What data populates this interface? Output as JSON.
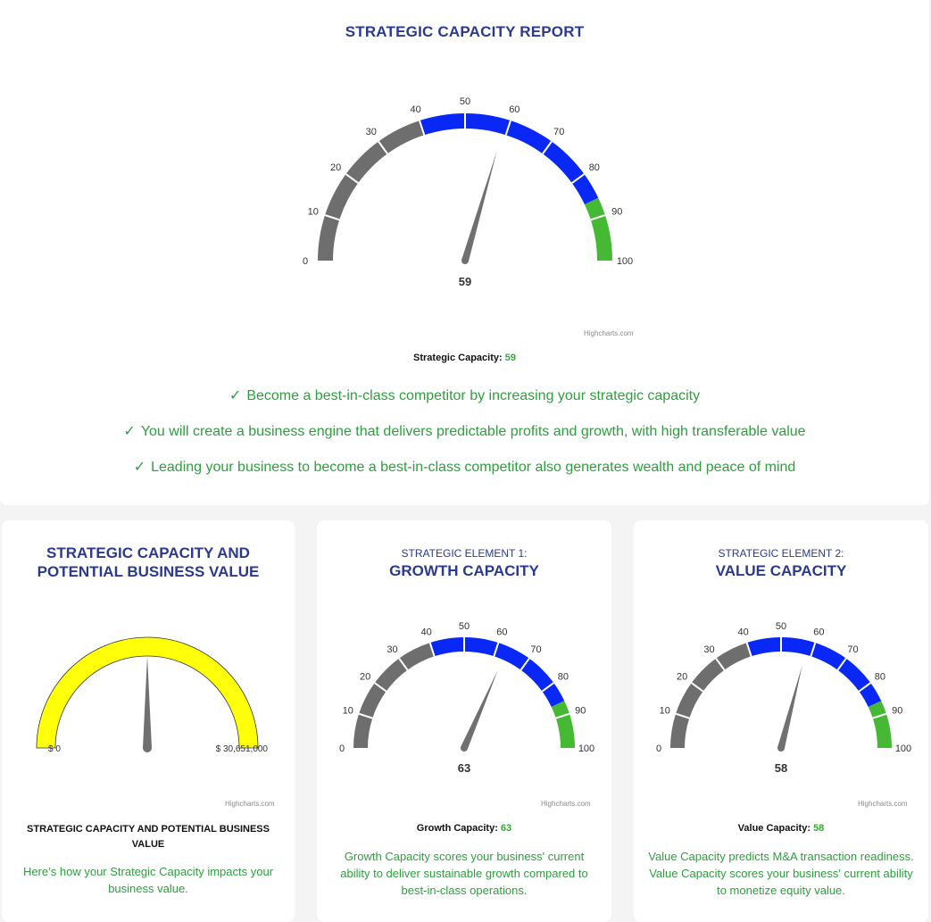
{
  "report": {
    "title": "STRATEGIC CAPACITY REPORT",
    "credit": "Highcharts.com",
    "caption_label": "Strategic Capacity:",
    "caption_value": "59",
    "bullets": [
      "Become a best-in-class competitor by increasing your strategic capacity",
      "You will create a business engine that delivers predictable profits and growth, with high transferable value",
      "Leading your business to become a best-in-class competitor also generates wealth and peace of mind"
    ],
    "check_icon": "✓"
  },
  "cards": [
    {
      "title_line1": "STRATEGIC CAPACITY AND",
      "title_line2": "POTENTIAL BUSINESS VALUE",
      "min_label": "$ 0",
      "max_label": "$ 30,651,000",
      "credit": "Highcharts.com",
      "caption": "STRATEGIC CAPACITY AND POTENTIAL BUSINESS VALUE",
      "description": "Here’s how your Strategic Capacity impacts your business value."
    },
    {
      "subtitle": "STRATEGIC ELEMENT 1:",
      "title": "GROWTH CAPACITY",
      "value_label": "63",
      "credit": "Highcharts.com",
      "caption_label": "Growth Capacity:",
      "caption_value": "63",
      "description": "Growth Capacity scores your business' current ability to deliver sustainable growth compared to best-in-class operations."
    },
    {
      "subtitle": "STRATEGIC ELEMENT 2:",
      "title": "VALUE CAPACITY",
      "value_label": "58",
      "credit": "Highcharts.com",
      "caption_label": "Value Capacity:",
      "caption_value": "58",
      "description": "Value Capacity predicts M&A transaction readiness. Value Capacity scores your business' current ability to monetize equity value."
    }
  ],
  "chart_data": [
    {
      "type": "gauge",
      "title": "STRATEGIC CAPACITY REPORT",
      "min": 0,
      "max": 100,
      "value": 59,
      "ticks": [
        "0",
        "10",
        "20",
        "30",
        "40",
        "50",
        "60",
        "70",
        "80",
        "90",
        "100"
      ],
      "bands": [
        {
          "from": 0,
          "to": 40,
          "color": "#6e6e6e"
        },
        {
          "from": 40,
          "to": 86,
          "color": "#0a28f5"
        },
        {
          "from": 86,
          "to": 100,
          "color": "#45b834"
        }
      ],
      "value_label": "59"
    },
    {
      "type": "gauge",
      "title": "STRATEGIC CAPACITY AND POTENTIAL BUSINESS VALUE",
      "min": 0,
      "max": 30651000,
      "value": 15325500,
      "ticks": [
        "$ 0",
        "$ 30,651,000"
      ],
      "bands": [
        {
          "from": 0,
          "to": 30651000,
          "color": "#ffff0a"
        }
      ]
    },
    {
      "type": "gauge",
      "title": "GROWTH CAPACITY",
      "min": 0,
      "max": 100,
      "value": 63,
      "ticks": [
        "0",
        "10",
        "20",
        "30",
        "40",
        "50",
        "60",
        "70",
        "80",
        "90",
        "100"
      ],
      "bands": [
        {
          "from": 0,
          "to": 40,
          "color": "#6e6e6e"
        },
        {
          "from": 40,
          "to": 86,
          "color": "#0a28f5"
        },
        {
          "from": 86,
          "to": 100,
          "color": "#45b834"
        }
      ],
      "value_label": "63"
    },
    {
      "type": "gauge",
      "title": "VALUE CAPACITY",
      "min": 0,
      "max": 100,
      "value": 58,
      "ticks": [
        "0",
        "10",
        "20",
        "30",
        "40",
        "50",
        "60",
        "70",
        "80",
        "90",
        "100"
      ],
      "bands": [
        {
          "from": 0,
          "to": 40,
          "color": "#6e6e6e"
        },
        {
          "from": 40,
          "to": 86,
          "color": "#0a28f5"
        },
        {
          "from": 86,
          "to": 100,
          "color": "#45b834"
        }
      ],
      "value_label": "58"
    }
  ]
}
